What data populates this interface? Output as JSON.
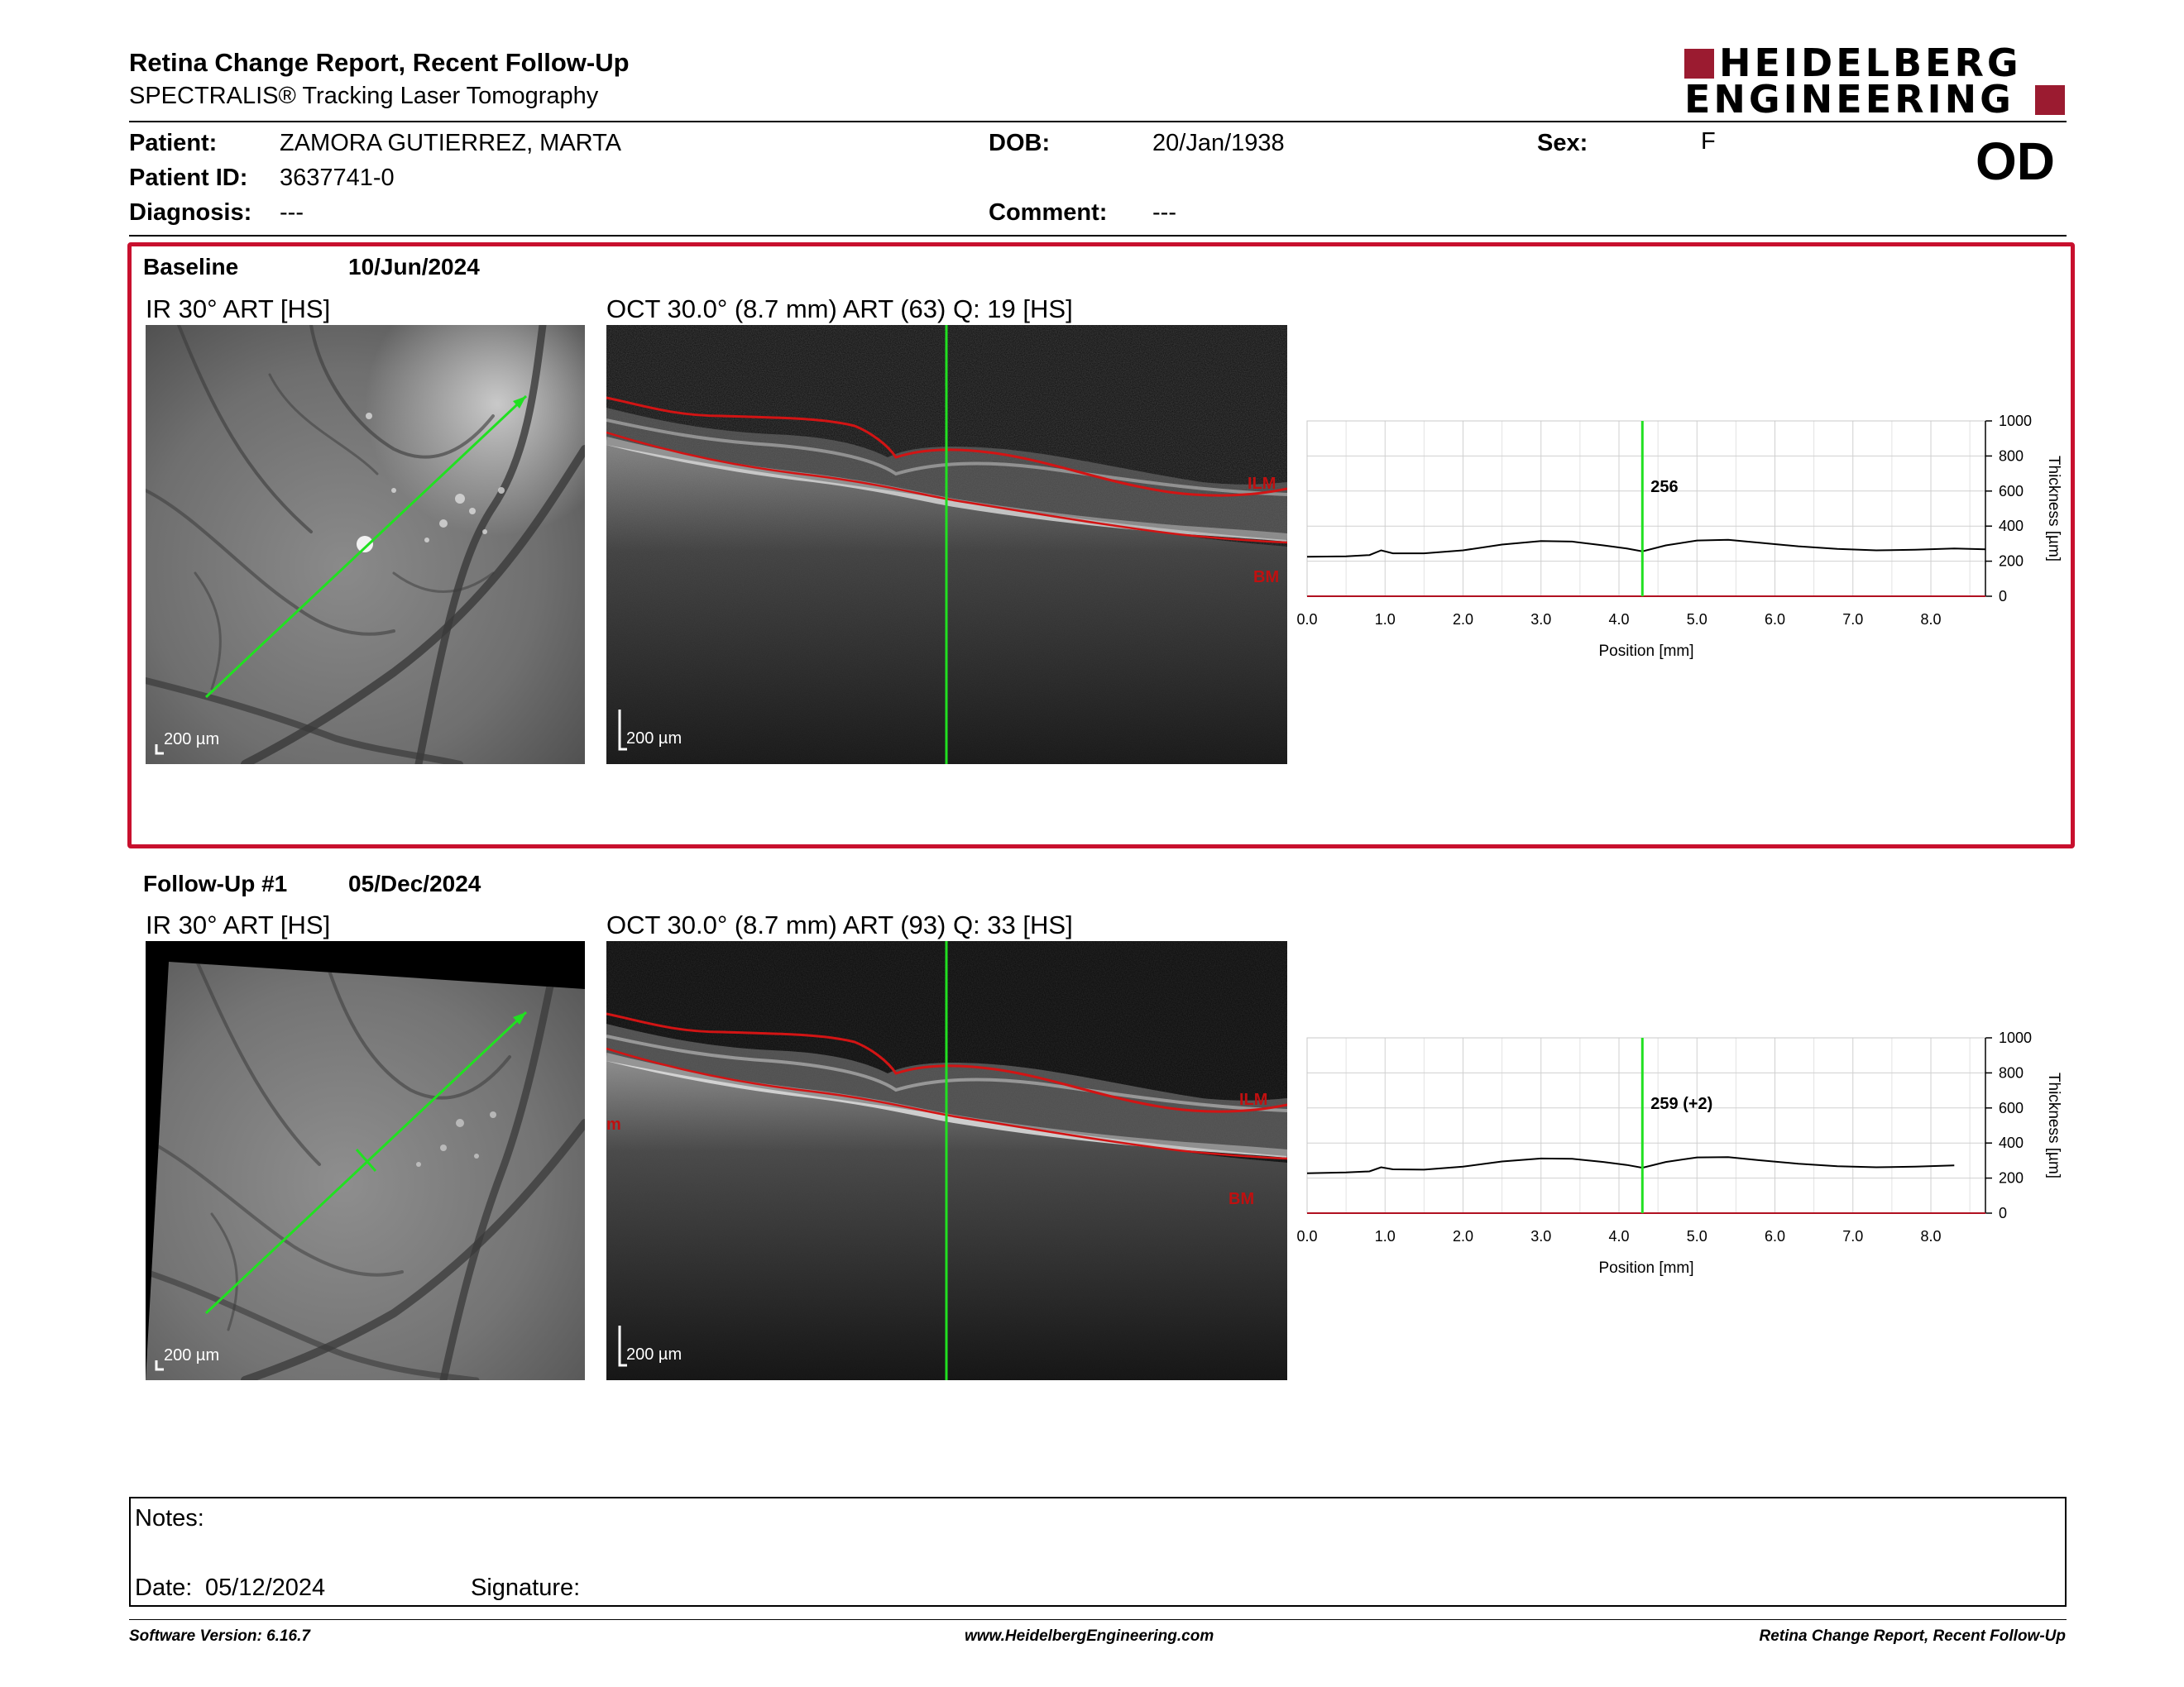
{
  "header": {
    "title": "Retina Change Report, Recent Follow-Up",
    "subtitle": "SPECTRALIS® Tracking Laser Tomography",
    "logo_line1": "HEIDELBERG",
    "logo_line2": "ENGINEERING"
  },
  "patient": {
    "patient_label": "Patient:",
    "patient_value": "ZAMORA GUTIERREZ, MARTA",
    "id_label": "Patient ID:",
    "id_value": "3637741-0",
    "diagnosis_label": "Diagnosis:",
    "diagnosis_value": "---",
    "dob_label": "DOB:",
    "dob_value": "20/Jan/1938",
    "comment_label": "Comment:",
    "comment_value": "---",
    "sex_label": "Sex:",
    "sex_value": "F",
    "eye": "OD"
  },
  "sections": [
    {
      "label": "Baseline",
      "date": "10/Jun/2024",
      "ir_caption": "IR 30° ART [HS]",
      "oct_caption": "OCT 30.0° (8.7 mm) ART (63) Q: 19 [HS]",
      "scale_ir": "200 µm",
      "scale_oct": "200 µm",
      "ilm": "ILM",
      "bm": "BM",
      "marker_value": "256"
    },
    {
      "label": "Follow-Up #1",
      "date": "05/Dec/2024",
      "ir_caption": "IR 30° ART [HS]",
      "oct_caption": "OCT 30.0° (8.7 mm) ART (93) Q: 33 [HS]",
      "scale_ir": "200 µm",
      "scale_oct": "200 µm",
      "ilm": "ILM",
      "bm": "BM",
      "side_mark": "m",
      "marker_value": "259 (+2)"
    }
  ],
  "chart_data": [
    {
      "type": "line",
      "xlabel": "Position [mm]",
      "ylabel": "Thickness [µm]",
      "x_ticks": [
        "0.0",
        "1.0",
        "2.0",
        "3.0",
        "4.0",
        "5.0",
        "6.0",
        "7.0",
        "8.0"
      ],
      "y_ticks": [
        "0",
        "200",
        "400",
        "600",
        "800",
        "1000"
      ],
      "xlim": [
        0,
        8.7
      ],
      "ylim": [
        0,
        1000
      ],
      "grid": true,
      "marker_x": 4.3,
      "marker_label": "256",
      "series": [
        {
          "x": [
            0.0,
            0.5,
            0.8,
            0.95,
            1.1,
            1.5,
            2.0,
            2.5,
            3.0,
            3.4,
            3.8,
            4.1,
            4.3,
            4.6,
            5.0,
            5.4,
            5.8,
            6.3,
            6.8,
            7.3,
            7.8,
            8.3,
            8.7
          ],
          "y": [
            225,
            228,
            235,
            262,
            245,
            245,
            262,
            295,
            315,
            312,
            290,
            272,
            256,
            290,
            318,
            322,
            305,
            285,
            270,
            262,
            265,
            272,
            268
          ]
        }
      ]
    },
    {
      "type": "line",
      "xlabel": "Position [mm]",
      "ylabel": "Thickness [µm]",
      "x_ticks": [
        "0.0",
        "1.0",
        "2.0",
        "3.0",
        "4.0",
        "5.0",
        "6.0",
        "7.0",
        "8.0"
      ],
      "y_ticks": [
        "0",
        "200",
        "400",
        "600",
        "800",
        "1000"
      ],
      "xlim": [
        0,
        8.7
      ],
      "ylim": [
        0,
        1000
      ],
      "grid": true,
      "marker_x": 4.3,
      "marker_label": "259 (+2)",
      "series": [
        {
          "x": [
            0.0,
            0.5,
            0.8,
            0.95,
            1.1,
            1.5,
            2.0,
            2.5,
            3.0,
            3.4,
            3.8,
            4.1,
            4.3,
            4.6,
            5.0,
            5.4,
            5.8,
            6.3,
            6.8,
            7.3,
            7.8,
            8.3
          ],
          "y": [
            228,
            232,
            238,
            262,
            250,
            248,
            265,
            295,
            312,
            310,
            292,
            275,
            259,
            292,
            318,
            320,
            302,
            282,
            268,
            262,
            265,
            272
          ]
        }
      ]
    }
  ],
  "notes": {
    "notes_label": "Notes:",
    "date_label": "Date:",
    "date_value": "05/12/2024",
    "signature_label": "Signature:"
  },
  "footer": {
    "left": "Software Version: 6.16.7",
    "center": "www.HeidelbergEngineering.com",
    "right": "Retina Change Report, Recent Follow-Up"
  },
  "colors": {
    "frame_red": "#c8102e",
    "logo_red": "#9b1b30",
    "marker_green": "#21e021",
    "boundary_red": "#d21414"
  }
}
